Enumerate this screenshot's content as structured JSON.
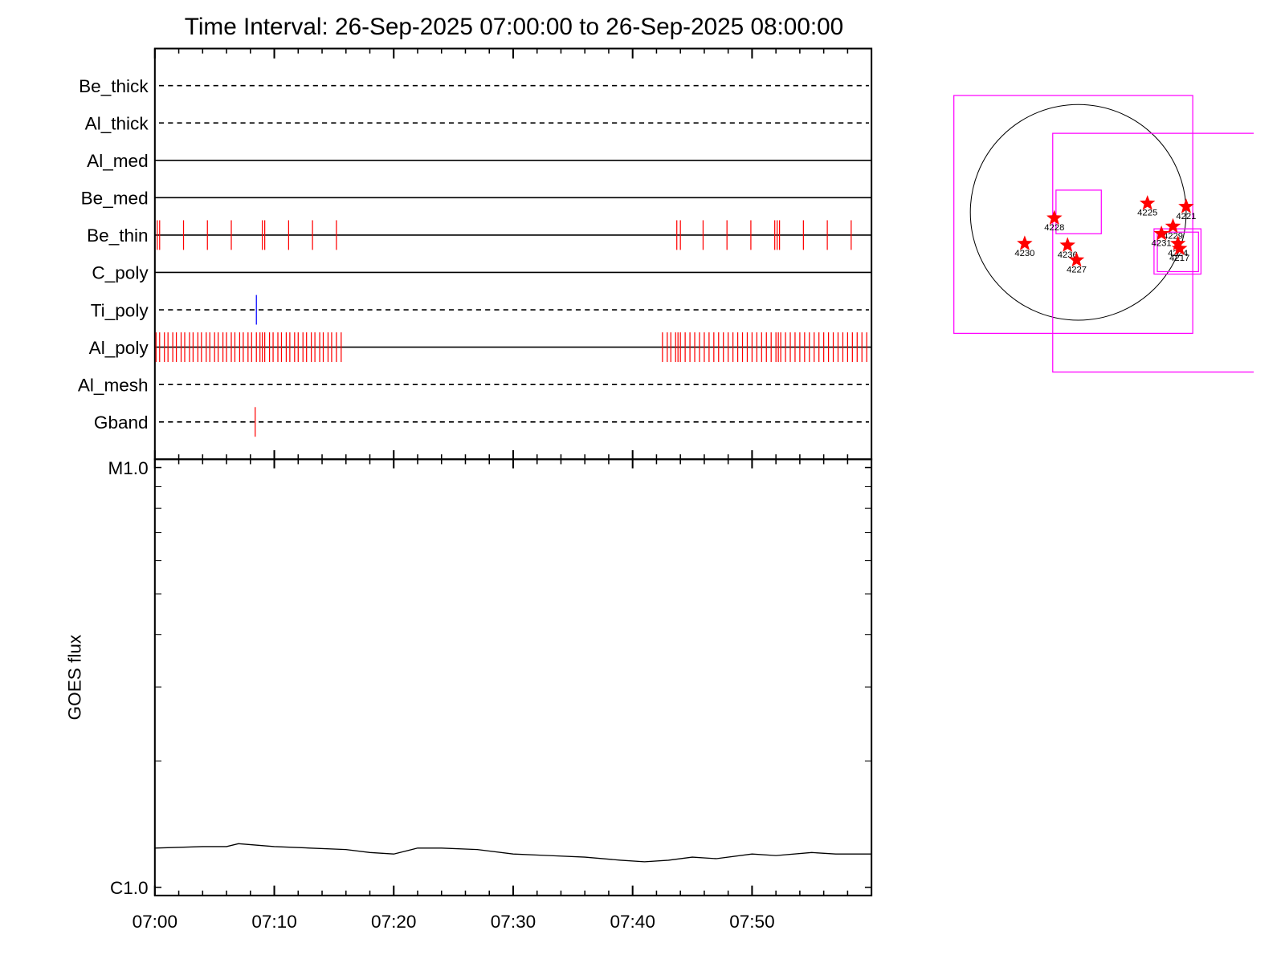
{
  "chart_data": [
    {
      "type": "event",
      "title": "Time Interval: 26-Sep-2025 07:00:00 to 26-Sep-2025 08:00:00",
      "series": [
        {
          "name": "Be_thick",
          "line": "dashed",
          "color": "#ff0000",
          "x": []
        },
        {
          "name": "Al_thick",
          "line": "dashed",
          "color": "#ff0000",
          "x": []
        },
        {
          "name": "Al_med",
          "line": "solid",
          "color": "#ff0000",
          "x": []
        },
        {
          "name": "Be_med",
          "line": "solid",
          "color": "#ff0000",
          "x": []
        },
        {
          "name": "Be_thin",
          "line": "solid",
          "color": "#ff0000",
          "x": [
            0.2,
            0.4,
            2.4,
            4.4,
            6.4,
            9.0,
            9.2,
            11.2,
            13.2,
            15.2,
            43.7,
            44.0,
            45.9,
            47.9,
            49.9,
            51.9,
            52.1,
            52.3,
            54.3,
            56.3,
            58.3
          ]
        },
        {
          "name": "C_poly",
          "line": "solid",
          "color": "#ff0000",
          "x": []
        },
        {
          "name": "Ti_poly",
          "line": "dashed",
          "color": "#0000ff",
          "x": [
            8.5
          ]
        },
        {
          "name": "Al_poly",
          "line": "solid",
          "color": "#ff0000",
          "x": [
            0.1,
            0.4,
            0.8,
            1.1,
            1.5,
            1.8,
            2.2,
            2.5,
            2.9,
            3.2,
            3.6,
            3.9,
            4.3,
            4.6,
            5.0,
            5.3,
            5.7,
            6.0,
            6.4,
            6.7,
            7.1,
            7.4,
            7.8,
            8.1,
            8.5,
            8.8,
            9.0,
            9.2,
            9.6,
            9.9,
            10.3,
            10.6,
            11.0,
            11.3,
            11.7,
            12.0,
            12.4,
            12.7,
            13.1,
            13.4,
            13.8,
            14.1,
            14.5,
            14.8,
            15.2,
            15.6,
            42.5,
            42.9,
            43.2,
            43.6,
            43.8,
            44.0,
            44.4,
            44.8,
            45.2,
            45.6,
            46.0,
            46.4,
            46.8,
            47.2,
            47.6,
            48.0,
            48.4,
            48.8,
            49.2,
            49.6,
            50.0,
            50.4,
            50.8,
            51.2,
            51.6,
            52.0,
            52.2,
            52.4,
            52.8,
            53.2,
            53.6,
            54.0,
            54.4,
            54.8,
            55.2,
            55.6,
            56.0,
            56.4,
            56.8,
            57.2,
            57.6,
            58.0,
            58.4,
            58.8,
            59.2,
            59.6
          ]
        },
        {
          "name": "Al_mesh",
          "line": "dashed",
          "color": "#ff0000",
          "x": []
        },
        {
          "name": "Gband",
          "line": "dashed",
          "color": "#ff0000",
          "x": [
            8.4
          ]
        }
      ]
    },
    {
      "type": "line",
      "ylabel": "GOES flux",
      "log_y": true,
      "color": "#000000",
      "xlim": [
        0,
        60
      ],
      "xticks": [
        {
          "value": 0,
          "label": "07:00"
        },
        {
          "value": 10,
          "label": "07:10"
        },
        {
          "value": 20,
          "label": "07:20"
        },
        {
          "value": 30,
          "label": "07:30"
        },
        {
          "value": 40,
          "label": "07:40"
        },
        {
          "value": 50,
          "label": "07:50"
        }
      ],
      "xminorticks": [
        2,
        4,
        6,
        8,
        12,
        14,
        16,
        18,
        22,
        24,
        26,
        28,
        32,
        34,
        36,
        38,
        42,
        44,
        46,
        48,
        52,
        54,
        56,
        58
      ],
      "ylim": [
        1e-06,
        1e-05
      ],
      "yticks": [
        {
          "value": 1e-05,
          "label": "M1.0"
        },
        {
          "value": 1e-06,
          "label": "C1.0"
        }
      ],
      "yminorticks": [
        2e-06,
        3e-06,
        4e-06,
        5e-06,
        6e-06,
        7e-06,
        8e-06,
        9e-06
      ],
      "x": [
        0,
        4,
        6,
        7,
        10,
        13,
        16,
        18,
        20,
        22,
        24,
        27,
        30,
        33,
        36,
        39,
        41,
        43,
        45,
        47,
        50,
        52,
        55,
        57,
        60
      ],
      "values": [
        1.24e-06,
        1.25e-06,
        1.25e-06,
        1.27e-06,
        1.25e-06,
        1.24e-06,
        1.23e-06,
        1.21e-06,
        1.2e-06,
        1.24e-06,
        1.24e-06,
        1.23e-06,
        1.2e-06,
        1.19e-06,
        1.18e-06,
        1.16e-06,
        1.15e-06,
        1.16e-06,
        1.18e-06,
        1.17e-06,
        1.2e-06,
        1.19e-06,
        1.21e-06,
        1.2e-06,
        1.2e-06
      ]
    }
  ],
  "sun_map": {
    "regions": [
      "4228",
      "4230",
      "4236",
      "4227",
      "4225",
      "4221",
      "4229",
      "4231",
      "4224",
      "4217"
    ]
  }
}
